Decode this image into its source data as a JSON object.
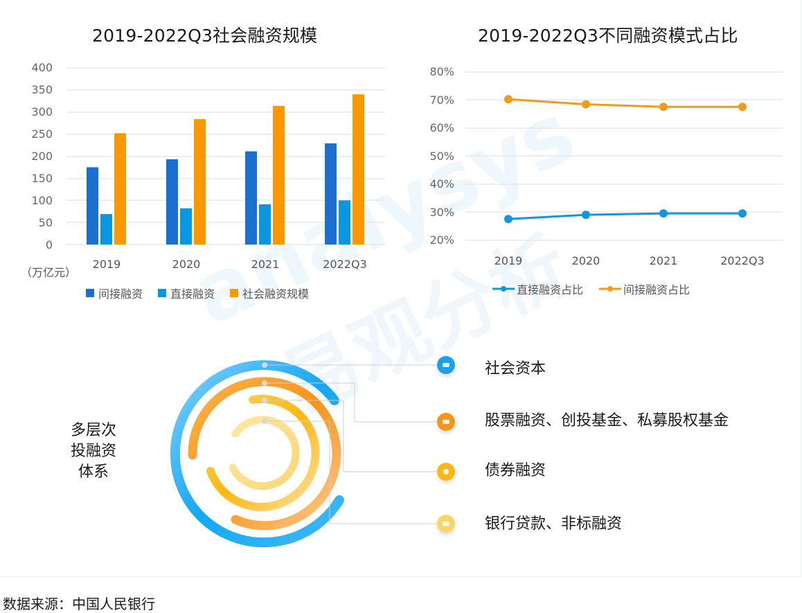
{
  "bar_chart": {
    "title": "2019-2022Q3社会融资规模",
    "unit_label": "（万亿元）",
    "y_ticks": [
      "400",
      "350",
      "300",
      "250",
      "200",
      "150",
      "100",
      "50",
      "0"
    ],
    "x_labels": [
      "2019",
      "2020",
      "2021",
      "2022Q3"
    ],
    "legend": [
      {
        "label": "间接融资",
        "color": "#1a6fd0"
      },
      {
        "label": "直接融资",
        "color": "#0b97df"
      },
      {
        "label": "社会融资规模",
        "color": "#fb9800"
      }
    ]
  },
  "line_chart": {
    "title": "2019-2022Q3不同融资模式占比",
    "y_ticks": [
      "80%",
      "70%",
      "60%",
      "50%",
      "40%",
      "30%",
      "20%"
    ],
    "x_labels": [
      "2019",
      "2020",
      "2021",
      "2022Q3"
    ],
    "legend": [
      {
        "label": "直接融资占比",
        "color": "#1595dc"
      },
      {
        "label": "间接融资占比",
        "color": "#f39a1c"
      }
    ]
  },
  "hierarchy": {
    "label_lines": [
      "多层次",
      "投融资",
      "体系"
    ],
    "items": [
      {
        "label": "社会资本",
        "color": "#1aa2ef",
        "icon": "cloud-icon"
      },
      {
        "label": "股票融资、创投基金、私募股权基金",
        "color": "#f7941d",
        "icon": "card-icon"
      },
      {
        "label": "债券融资",
        "color": "#fbb815",
        "icon": "flower-icon"
      },
      {
        "label": "银行贷款、非标融资",
        "color": "#fdd468",
        "icon": "card-icon"
      }
    ]
  },
  "source": "数据来源：中国人民银行",
  "watermark": {
    "brand": "analysys",
    "cn": "易观分析"
  },
  "chart_data": [
    {
      "type": "bar",
      "title": "2019-2022Q3社会融资规模",
      "categories": [
        "2019",
        "2020",
        "2021",
        "2022Q3"
      ],
      "series": [
        {
          "name": "间接融资",
          "values": [
            175,
            193,
            211,
            229
          ]
        },
        {
          "name": "直接融资",
          "values": [
            69,
            82,
            91,
            100
          ]
        },
        {
          "name": "社会融资规模",
          "values": [
            252,
            284,
            314,
            340
          ]
        }
      ],
      "xlabel": "",
      "ylabel": "万亿元",
      "ylim": [
        0,
        400
      ],
      "yticks": [
        0,
        50,
        100,
        150,
        200,
        250,
        300,
        350,
        400
      ],
      "grid": true,
      "legend_position": "bottom"
    },
    {
      "type": "line",
      "title": "2019-2022Q3不同融资模式占比",
      "categories": [
        "2019",
        "2020",
        "2021",
        "2022Q3"
      ],
      "series": [
        {
          "name": "直接融资占比",
          "values": [
            27.6,
            29.1,
            29.6,
            29.6
          ]
        },
        {
          "name": "间接融资占比",
          "values": [
            70.3,
            68.5,
            67.6,
            67.6
          ]
        }
      ],
      "xlabel": "",
      "ylabel": "%",
      "ylim": [
        20,
        80
      ],
      "yticks": [
        "20%",
        "30%",
        "40%",
        "50%",
        "60%",
        "70%",
        "80%"
      ],
      "grid": true,
      "legend_position": "bottom"
    }
  ]
}
